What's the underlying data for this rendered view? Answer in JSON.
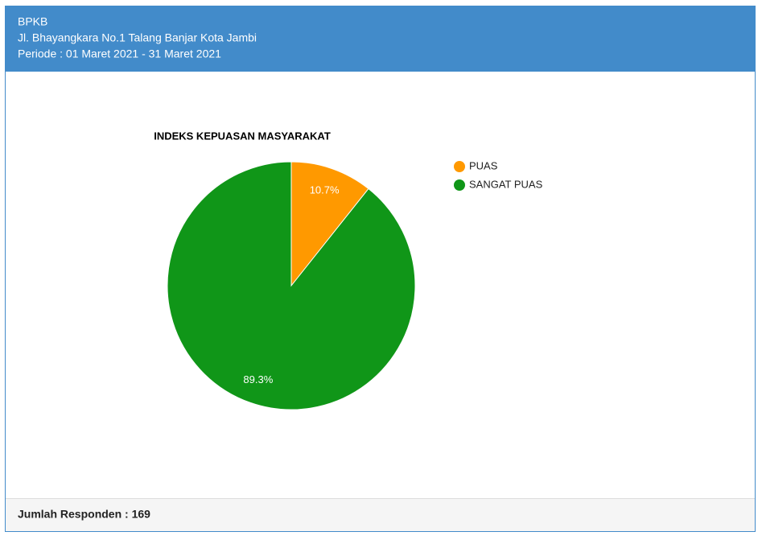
{
  "header": {
    "lines": [
      "BPKB",
      "Jl. Bhayangkara No.1 Talang Banjar Kota Jambi",
      "Periode : 01 Maret 2021 - 31 Maret 2021"
    ]
  },
  "chart_data": {
    "type": "pie",
    "title": "INDEKS KEPUASAN MASYARAKAT",
    "categories": [
      "PUAS",
      "SANGAT PUAS"
    ],
    "values": [
      10.7,
      89.3
    ],
    "value_labels": [
      "10.7%",
      "89.3%"
    ],
    "colors": [
      "#ff9900",
      "#109618"
    ],
    "legend": "right"
  },
  "footer": {
    "text": "Jumlah Responden : 169"
  }
}
